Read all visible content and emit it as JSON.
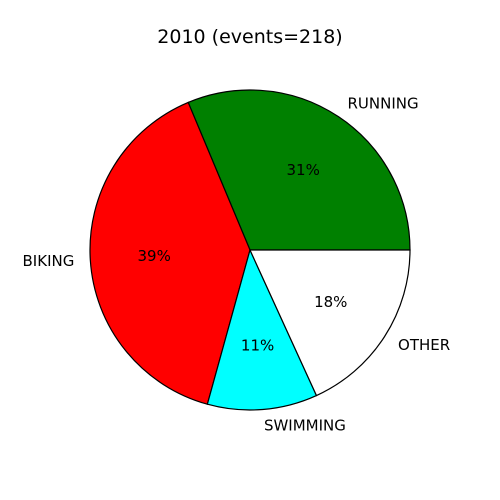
{
  "chart_data": {
    "type": "pie",
    "title": "2010 (events=218)",
    "slices": [
      {
        "label": "RUNNING",
        "pct_text": "31%",
        "value": 31,
        "color": "#008000"
      },
      {
        "label": "BIKING",
        "pct_text": "39%",
        "value": 39,
        "color": "#ff0000"
      },
      {
        "label": "SWIMMING",
        "pct_text": "11%",
        "value": 11,
        "color": "#00ffff"
      },
      {
        "label": "OTHER",
        "pct_text": "18%",
        "value": 18,
        "color": "#ffffff"
      }
    ],
    "start_angle_deg": 0,
    "direction": "counterclockwise",
    "legend": "none"
  }
}
